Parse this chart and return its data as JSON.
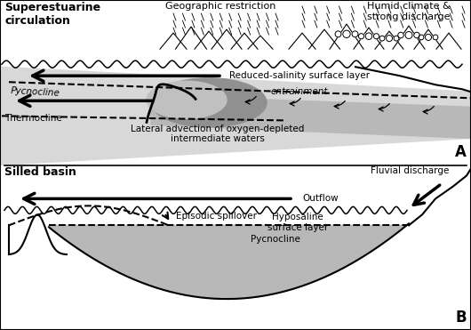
{
  "fig_width": 5.3,
  "fig_height": 3.71,
  "dpi": 100,
  "bg_color": "#ffffff",
  "panel_A": {
    "title": "Superestuarine\ncirculation",
    "label": "A",
    "geo_restriction": "Geographic restriction",
    "humid_climate": "Humid climate &\nstrong discharge",
    "reduced_salinity": "Reduced-salinity surface layer",
    "pycnocline": "Pycnocline",
    "thermocline": "Thermocline",
    "entrainment": "entrainment",
    "lateral_advection": "Lateral advection of oxygen-depleted\nintermediate waters",
    "sky_color": "#f8f8f8",
    "water_light": "#d8d8d8",
    "water_mid": "#b8b8b8",
    "water_dark": "#909090"
  },
  "panel_B": {
    "title": "Silled basin",
    "label": "B",
    "fluvial_discharge": "Fluvial discharge",
    "outflow": "Outflow",
    "hyposaline": "Hyposaline\nsurface layer",
    "episodic_spillover": "Episodic spillover",
    "pycnocline": "Pycnocline",
    "basin_gray": "#b8b8b8"
  }
}
